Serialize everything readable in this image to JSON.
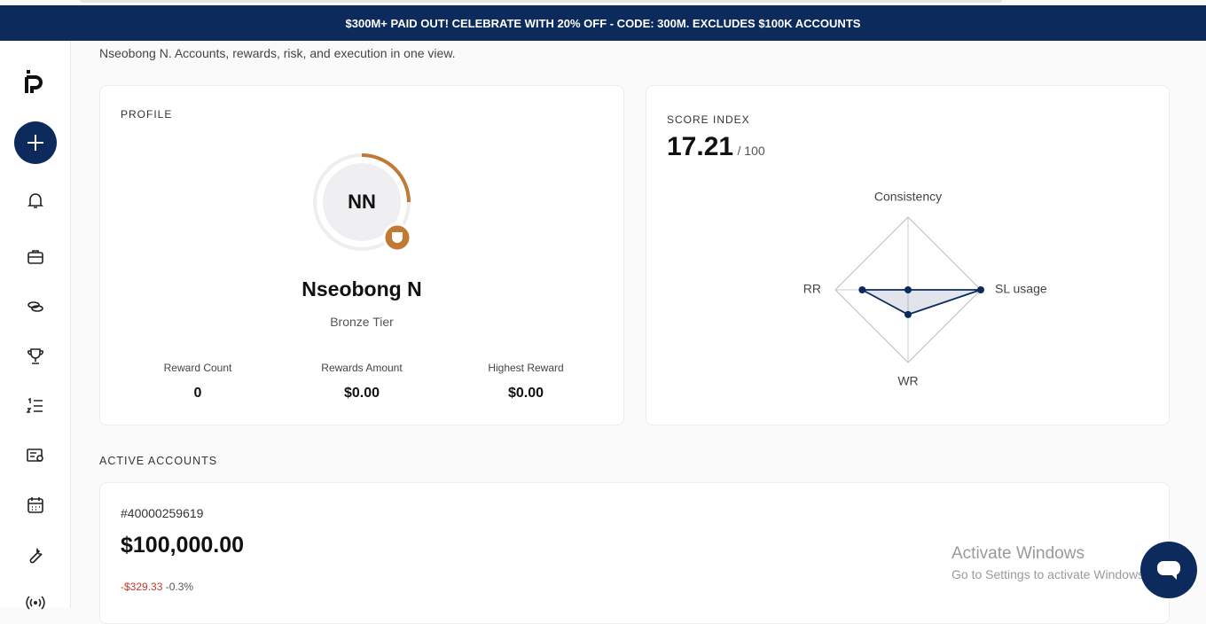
{
  "banner": "$300M+ PAID OUT! CELEBRATE WITH 20% OFF - CODE: 300M. EXCLUDES $100K ACCOUNTS",
  "subtitle": "Nseobong N. Accounts, rewards, risk, and execution in one view.",
  "profile": {
    "heading": "PROFILE",
    "initials": "NN",
    "name": "Nseobong N",
    "tier": "Bronze Tier",
    "stats": [
      {
        "label": "Reward Count",
        "value": "0"
      },
      {
        "label": "Rewards Amount",
        "value": "$0.00"
      },
      {
        "label": "Highest Reward",
        "value": "$0.00"
      }
    ]
  },
  "score_index": {
    "heading": "SCORE INDEX",
    "score": "17.21",
    "max_label": "/ 100",
    "radar": {
      "type": "radar",
      "categories": [
        "Consistency",
        "SL usage",
        "WR",
        "RR"
      ],
      "values": [
        0,
        100,
        34,
        63
      ],
      "rlim": [
        0,
        100
      ]
    }
  },
  "active_accounts": {
    "heading": "ACTIVE ACCOUNTS",
    "accounts": [
      {
        "id": "#40000259619",
        "balance": "$100,000.00",
        "change": "-$329.33",
        "change_pct": "-0.3%"
      }
    ]
  },
  "watermark": {
    "title": "Activate Windows",
    "text": "Go to Settings to activate Windows."
  }
}
